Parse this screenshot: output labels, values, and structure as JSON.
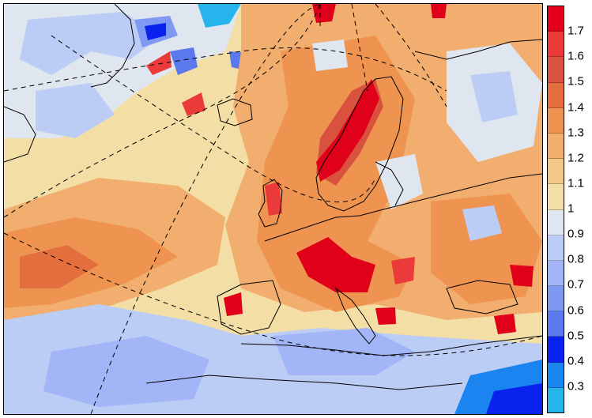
{
  "map": {
    "projection_lines": "dashed",
    "coastlines": true
  },
  "legend": {
    "colors": [
      "#e0001a",
      "#ea3a3a",
      "#d9523d",
      "#e36f3e",
      "#ee9450",
      "#f2ae6e",
      "#f3c98a",
      "#f3dfa6",
      "#dfe6f0",
      "#bccdf5",
      "#a2b6f7",
      "#7f99f2",
      "#5b78ec",
      "#0a22ee",
      "#1a85f0",
      "#26b4ec"
    ],
    "labels": [
      "1.7",
      "1.6",
      "1.5",
      "1.4",
      "1.3",
      "1.2",
      "1.1",
      "1",
      "0.9",
      "0.8",
      "0.7",
      "0.6",
      "0.5",
      "0.4",
      "0.3"
    ]
  }
}
